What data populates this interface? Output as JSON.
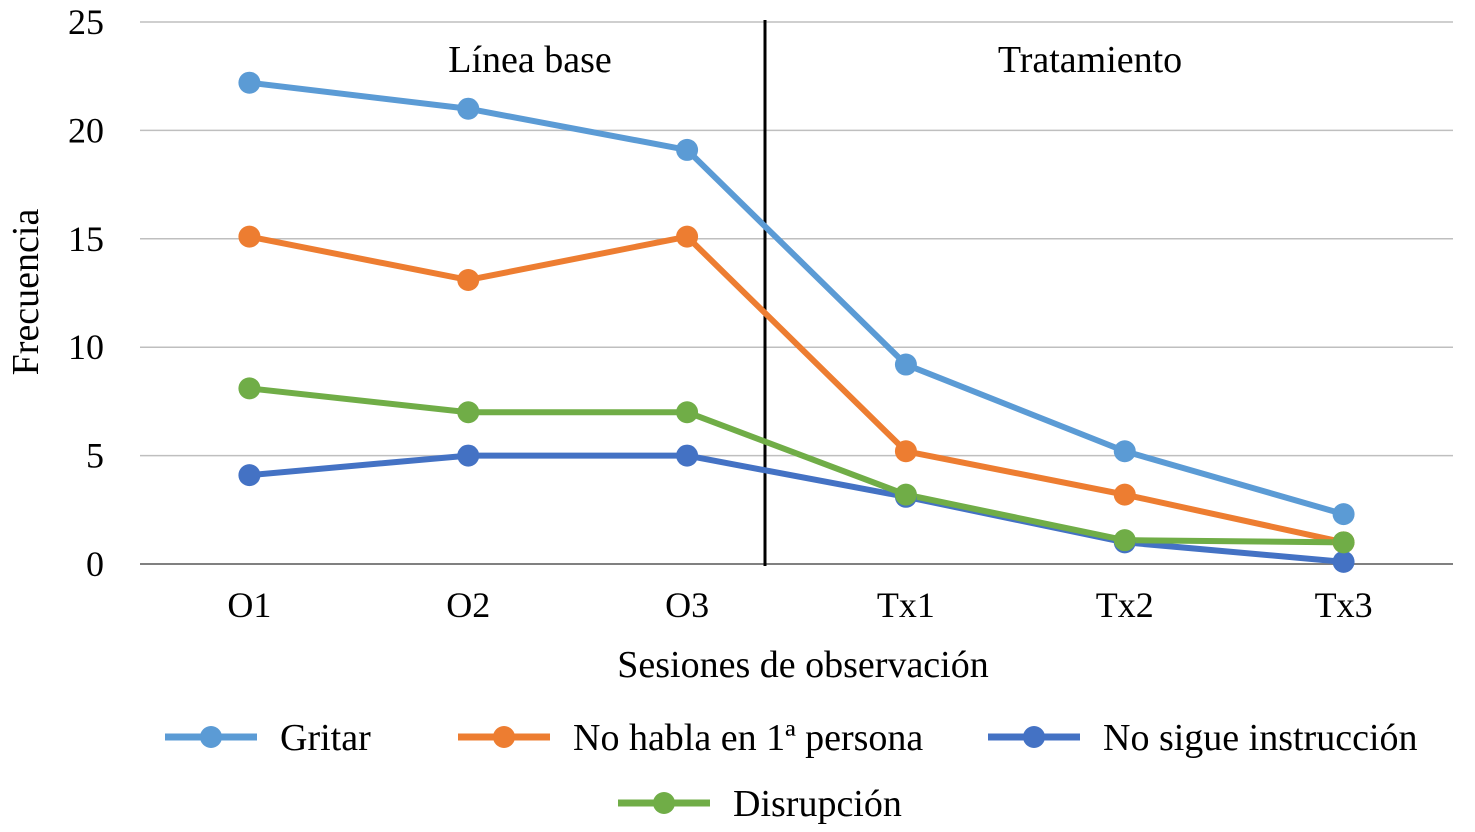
{
  "chart_data": {
    "type": "line",
    "title": "",
    "xlabel": "Sesiones de observación",
    "ylabel": "Frecuencia",
    "categories": [
      "O1",
      "O2",
      "O3",
      "Tx1",
      "Tx2",
      "Tx3"
    ],
    "ylim": [
      0,
      25
    ],
    "yticks": [
      0,
      5,
      10,
      15,
      20,
      25
    ],
    "grid": true,
    "legend_position": "bottom",
    "phase_divider_between": [
      "O3",
      "Tx1"
    ],
    "phase_labels": [
      "Línea base",
      "Tratamiento"
    ],
    "series": [
      {
        "name": "Gritar",
        "color": "#5B9BD5",
        "values": [
          22.2,
          21,
          19.1,
          9.2,
          5.2,
          2.3
        ]
      },
      {
        "name": "No habla en 1ª persona",
        "color": "#ED7D31",
        "values": [
          15.1,
          13.1,
          15.1,
          5.2,
          3.2,
          1
        ]
      },
      {
        "name": "No sigue instrucción",
        "color": "#4472C4",
        "values": [
          4.1,
          5,
          5,
          3.1,
          1,
          0.1
        ]
      },
      {
        "name": "Disrupción",
        "color": "#70AD47",
        "values": [
          8.1,
          7,
          7,
          3.2,
          1.1,
          1
        ]
      }
    ]
  }
}
